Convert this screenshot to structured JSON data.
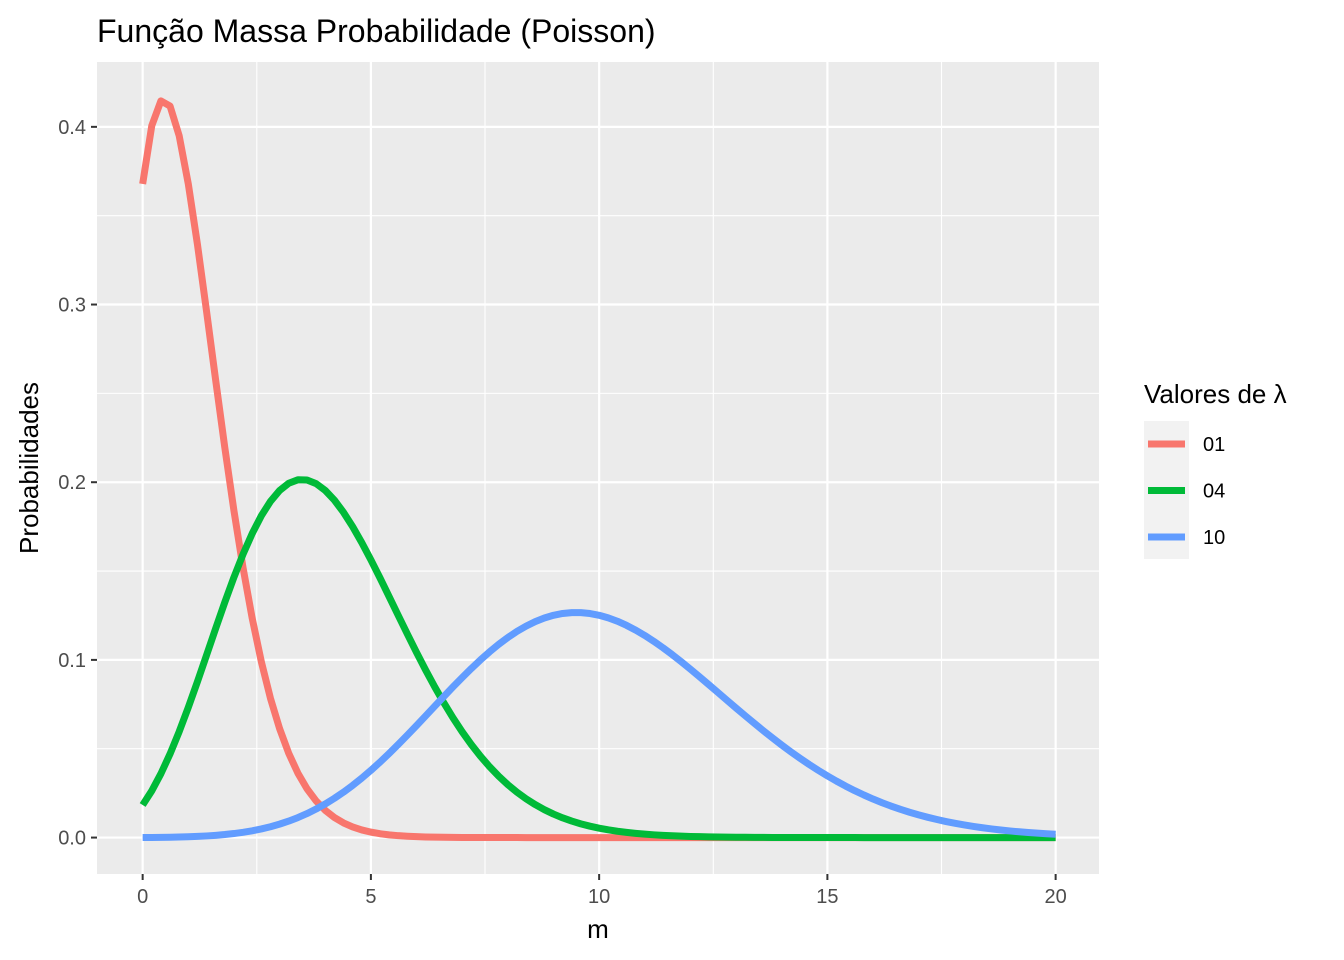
{
  "chart_data": {
    "type": "line",
    "title": "Função Massa Probabilidade (Poisson)",
    "xlabel": "m",
    "ylabel": "Probabilidades",
    "xlim": [
      -1.0,
      20.95
    ],
    "ylim": [
      -0.0205,
      0.4365
    ],
    "x_ticks": [
      0,
      5,
      10,
      15,
      20
    ],
    "x_tick_labels": [
      "0",
      "5",
      "10",
      "15",
      "20"
    ],
    "y_ticks": [
      0.0,
      0.1,
      0.2,
      0.3,
      0.4
    ],
    "y_tick_labels": [
      "0.0",
      "0.1",
      "0.2",
      "0.3",
      "0.4"
    ],
    "x_minor_ticks": [
      2.5,
      7.5,
      12.5,
      17.5
    ],
    "y_minor_ticks": [
      0.05,
      0.15,
      0.25,
      0.35
    ],
    "grid": true,
    "legend": {
      "title": "Valores de λ",
      "position": "right"
    },
    "x_step": 0.2,
    "x_range": [
      0,
      20
    ],
    "series": [
      {
        "name": "01",
        "lambda": 1,
        "color": "#F8766D"
      },
      {
        "name": "04",
        "lambda": 4,
        "color": "#00BA38"
      },
      {
        "name": "10",
        "lambda": 10,
        "color": "#619CFF"
      }
    ]
  }
}
